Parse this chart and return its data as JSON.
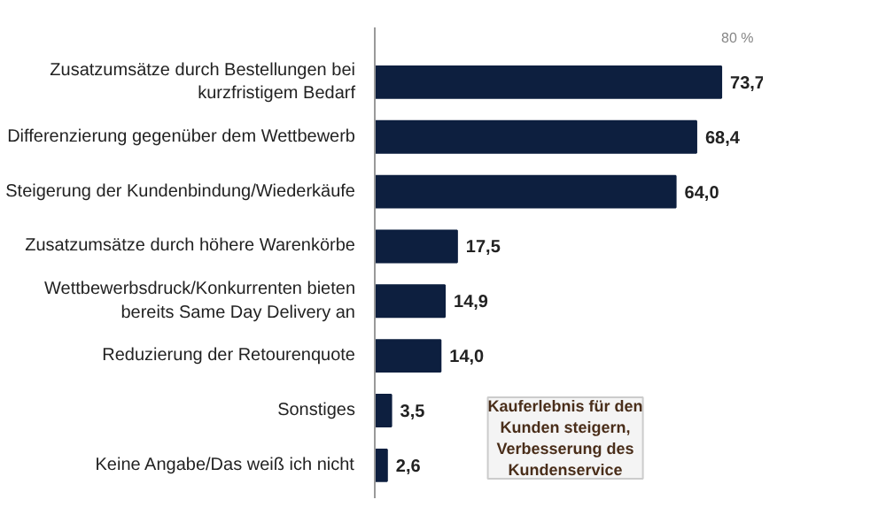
{
  "chart_data": {
    "type": "bar",
    "orientation": "horizontal",
    "categories": [
      "Zusatzumsätze durch Bestellungen bei\nkurzfristigem Bedarf",
      "Differenzierung gegenüber dem Wettbewerb",
      "Steigerung der Kundenbindung/Wiederkäufe",
      "Zusatzumsätze durch höhere Warenkörbe",
      "Wettbewerbsdruck/Konkurrenten bieten\nbereits Same Day Delivery an",
      "Reduzierung der Retourenquote",
      "Sonstiges",
      "Keine Angabe/Das weiß ich nicht"
    ],
    "values": [
      73.7,
      68.4,
      64.0,
      17.5,
      14.9,
      14.0,
      3.5,
      2.6
    ],
    "value_labels": [
      "73,7",
      "68,4",
      "64,0",
      "17,5",
      "14,9",
      "14,0",
      "3,5",
      "2,6"
    ],
    "color": "#0d1f3f",
    "annotations": [
      "80 %",
      "Kauferlebnis für den\nKunden steigern,\nVerbesserung des\nKundenservice"
    ]
  }
}
